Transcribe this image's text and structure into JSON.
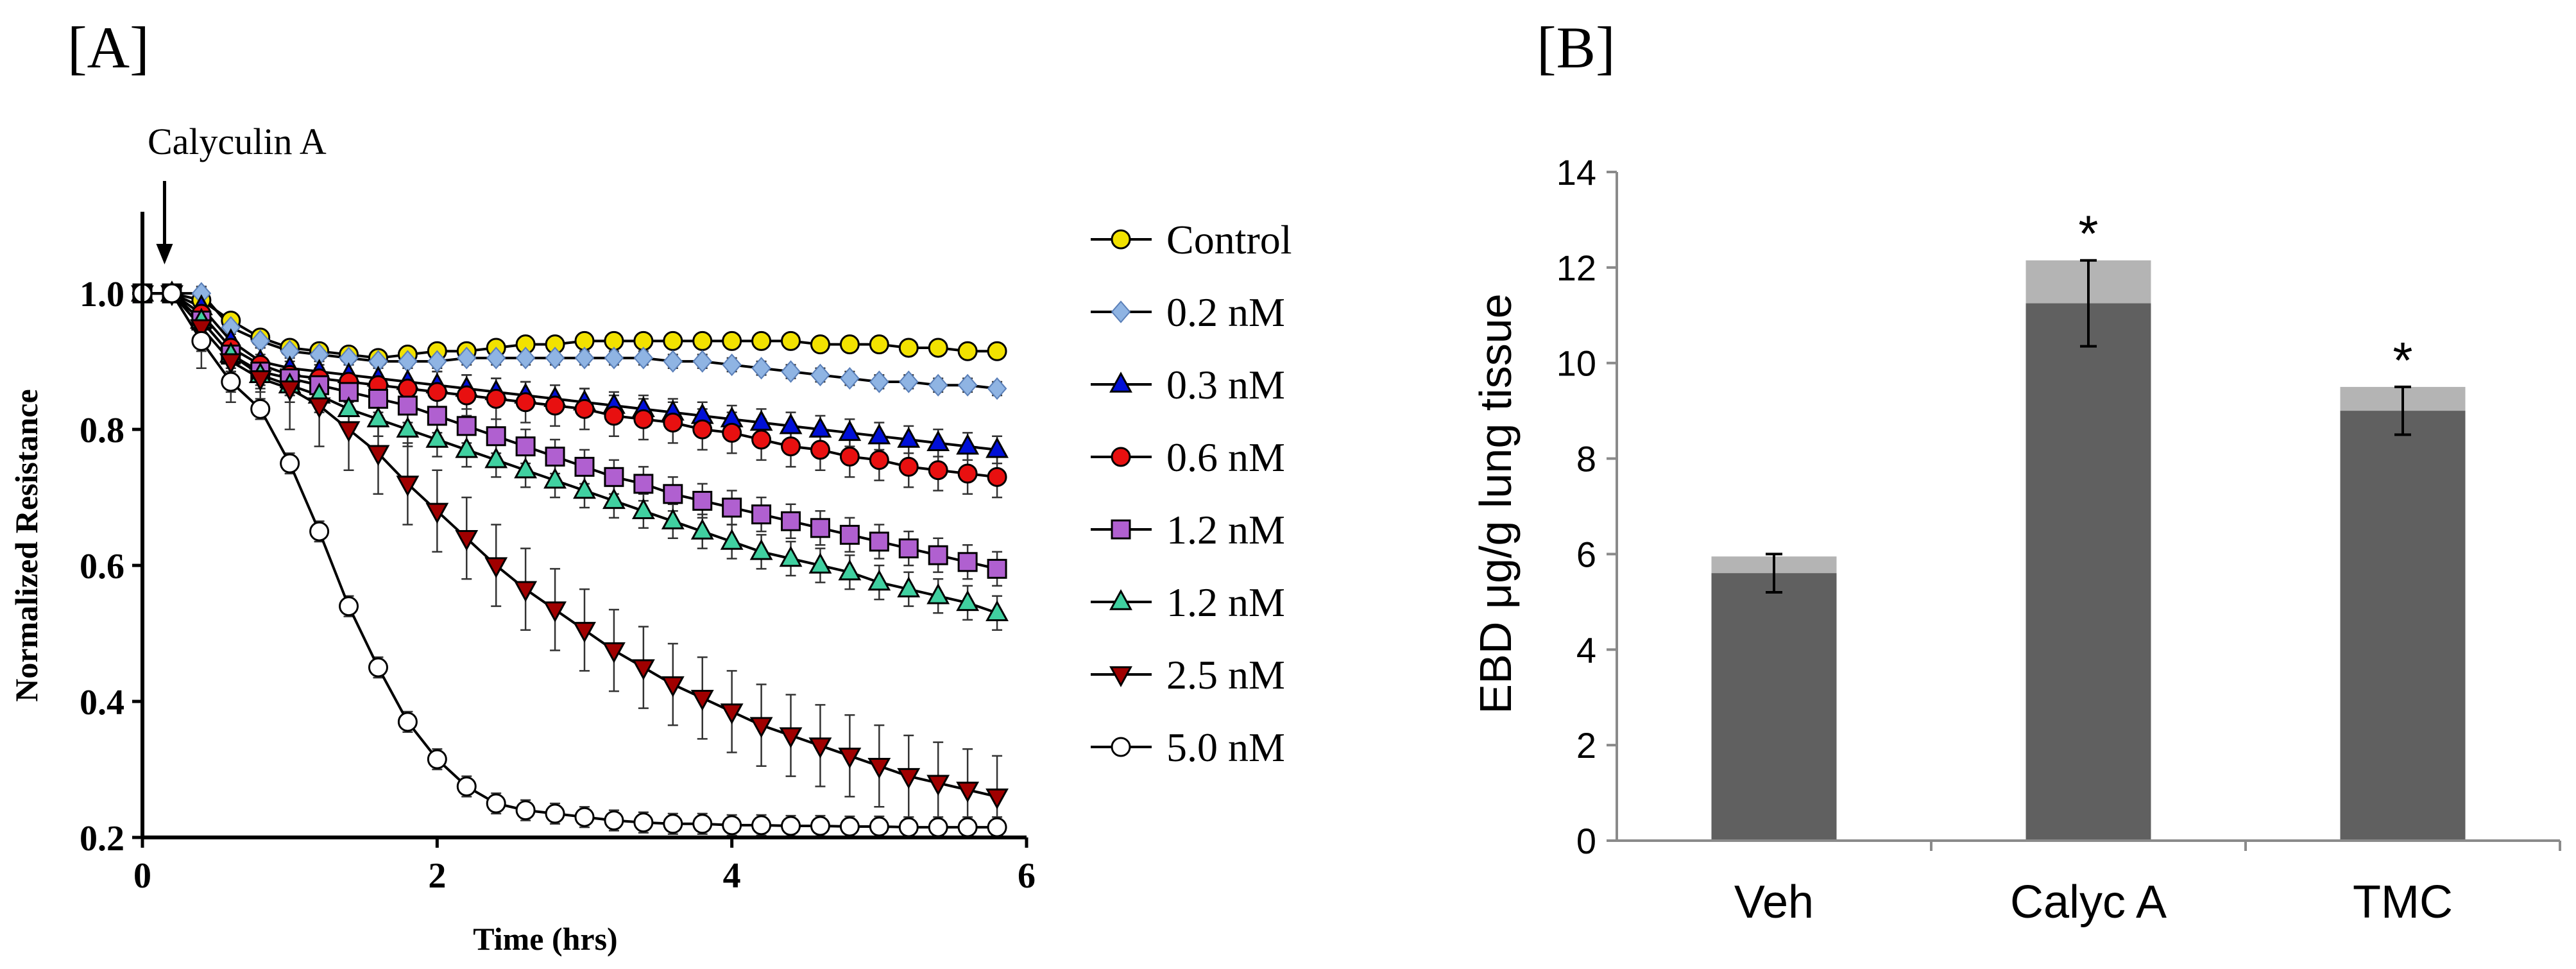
{
  "chart_data": [
    {
      "type": "line",
      "panel_label": "[A]",
      "xlabel": "Time (hrs)",
      "ylabel": "Normalized Resistance",
      "xlim": [
        0,
        6
      ],
      "ylim": [
        0.2,
        1.12
      ],
      "xticks": [
        0,
        2,
        4,
        6
      ],
      "yticks": [
        0.2,
        0.4,
        0.6,
        0.8,
        1.0
      ],
      "ytick_labels": [
        "0.2",
        "0.4",
        "0.6",
        "0.8",
        "1.0"
      ],
      "annotation": {
        "text": "Calyculin A",
        "x": 0.15
      },
      "x": [
        0,
        0.2,
        0.4,
        0.6,
        0.8,
        1.0,
        1.2,
        1.4,
        1.6,
        1.8,
        2.0,
        2.2,
        2.4,
        2.6,
        2.8,
        3.0,
        3.2,
        3.4,
        3.6,
        3.8,
        4.0,
        4.2,
        4.4,
        4.6,
        4.8,
        5.0,
        5.2,
        5.4,
        5.6,
        5.8
      ],
      "series": [
        {
          "name": "Control",
          "marker": "circle",
          "color": "#f2e200",
          "error": 0.01,
          "values": [
            1.0,
            1.0,
            0.99,
            0.96,
            0.935,
            0.92,
            0.915,
            0.91,
            0.905,
            0.91,
            0.915,
            0.915,
            0.92,
            0.925,
            0.925,
            0.93,
            0.93,
            0.93,
            0.93,
            0.93,
            0.93,
            0.93,
            0.93,
            0.925,
            0.925,
            0.925,
            0.92,
            0.92,
            0.915,
            0.915
          ]
        },
        {
          "name": "0.2 nM",
          "marker": "diamond",
          "color": "#8fb4e3",
          "error": 0.01,
          "values": [
            1.0,
            1.0,
            1.0,
            0.95,
            0.93,
            0.915,
            0.91,
            0.905,
            0.9,
            0.9,
            0.9,
            0.905,
            0.905,
            0.905,
            0.905,
            0.905,
            0.905,
            0.905,
            0.9,
            0.9,
            0.895,
            0.89,
            0.885,
            0.88,
            0.875,
            0.87,
            0.87,
            0.865,
            0.865,
            0.86
          ]
        },
        {
          "name": "0.3 nM",
          "marker": "triangle-up",
          "color": "#0010d8",
          "error": 0.02,
          "values": [
            1.0,
            1.0,
            0.98,
            0.93,
            0.9,
            0.89,
            0.885,
            0.88,
            0.875,
            0.87,
            0.865,
            0.86,
            0.855,
            0.85,
            0.845,
            0.84,
            0.835,
            0.83,
            0.825,
            0.82,
            0.815,
            0.81,
            0.805,
            0.8,
            0.795,
            0.79,
            0.785,
            0.78,
            0.775,
            0.77
          ]
        },
        {
          "name": "0.6 nM",
          "marker": "circle",
          "color": "#e81010",
          "error": 0.03,
          "values": [
            1.0,
            1.0,
            0.97,
            0.92,
            0.895,
            0.88,
            0.875,
            0.87,
            0.865,
            0.86,
            0.855,
            0.85,
            0.845,
            0.84,
            0.835,
            0.83,
            0.82,
            0.815,
            0.81,
            0.8,
            0.795,
            0.785,
            0.775,
            0.77,
            0.76,
            0.755,
            0.745,
            0.74,
            0.735,
            0.73
          ]
        },
        {
          "name": "1.2 nM",
          "marker": "square",
          "color": "#b060d0",
          "error": 0.025,
          "values": [
            1.0,
            1.0,
            0.96,
            0.91,
            0.885,
            0.875,
            0.865,
            0.855,
            0.845,
            0.835,
            0.82,
            0.805,
            0.79,
            0.775,
            0.76,
            0.745,
            0.73,
            0.72,
            0.705,
            0.695,
            0.685,
            0.675,
            0.665,
            0.655,
            0.645,
            0.635,
            0.625,
            0.615,
            0.605,
            0.595
          ]
        },
        {
          "name": "1.2 nM",
          "marker": "triangle-up",
          "color": "#40d0a0",
          "error": 0.025,
          "values": [
            1.0,
            1.0,
            0.96,
            0.91,
            0.88,
            0.865,
            0.85,
            0.83,
            0.815,
            0.8,
            0.785,
            0.77,
            0.755,
            0.74,
            0.725,
            0.71,
            0.695,
            0.68,
            0.665,
            0.65,
            0.635,
            0.62,
            0.61,
            0.6,
            0.59,
            0.575,
            0.565,
            0.555,
            0.545,
            0.53
          ]
        },
        {
          "name": "2.5 nM",
          "marker": "triangle-down",
          "color": "#a00000",
          "error": 0.06,
          "values": [
            1.0,
            1.0,
            0.95,
            0.9,
            0.875,
            0.86,
            0.835,
            0.8,
            0.765,
            0.72,
            0.68,
            0.64,
            0.6,
            0.565,
            0.535,
            0.505,
            0.475,
            0.45,
            0.425,
            0.405,
            0.385,
            0.365,
            0.35,
            0.335,
            0.32,
            0.305,
            0.29,
            0.28,
            0.27,
            0.26
          ]
        },
        {
          "name": "5.0 nM",
          "marker": "circle-open",
          "color": "#ffffff",
          "error": 0.015,
          "values": [
            1.0,
            1.0,
            0.93,
            0.87,
            0.83,
            0.75,
            0.65,
            0.54,
            0.45,
            0.37,
            0.315,
            0.275,
            0.25,
            0.24,
            0.235,
            0.23,
            0.225,
            0.222,
            0.22,
            0.22,
            0.218,
            0.218,
            0.217,
            0.217,
            0.216,
            0.216,
            0.215,
            0.215,
            0.215,
            0.215
          ]
        }
      ]
    },
    {
      "type": "bar",
      "panel_label": "[B]",
      "ylabel": "EBD μg/g lung tissue",
      "xlabel": "",
      "ylim": [
        0,
        14
      ],
      "yticks": [
        0,
        2,
        4,
        6,
        8,
        10,
        12,
        14
      ],
      "ytick_labels": [
        "0",
        "2",
        "4",
        "6",
        "8",
        "10",
        "12",
        "14"
      ],
      "categories": [
        "Veh",
        "Calyc A",
        "TMC"
      ],
      "values": [
        5.6,
        11.25,
        9.0
      ],
      "cap_values": [
        5.95,
        12.15,
        9.5
      ],
      "errors": [
        0.4,
        0.9,
        0.5
      ],
      "significance": [
        "",
        "*",
        "*"
      ],
      "bar_color": "#606060",
      "cap_color": "#b4b4b4"
    }
  ]
}
